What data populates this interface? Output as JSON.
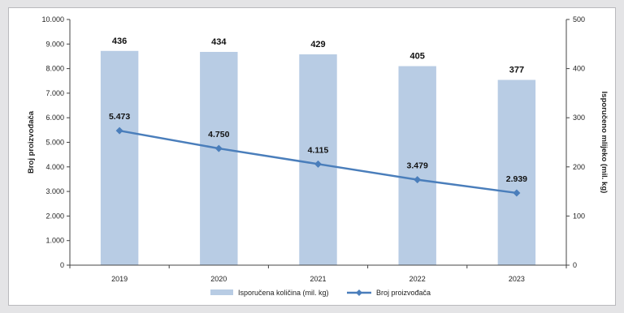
{
  "chart_data": {
    "type": "bar+line",
    "categories": [
      "2019",
      "2020",
      "2021",
      "2022",
      "2023"
    ],
    "series": [
      {
        "name": "Isporučena količina (mil. kg)",
        "chart_type": "bar",
        "axis": "right",
        "values": [
          436,
          434,
          429,
          405,
          377
        ],
        "labels": [
          "436",
          "434",
          "429",
          "405",
          "377"
        ],
        "color": "#b8cce4"
      },
      {
        "name": "Broj proizvođača",
        "chart_type": "line",
        "axis": "left",
        "values": [
          5473,
          4750,
          4115,
          3479,
          2939
        ],
        "labels": [
          "5.473",
          "4.750",
          "4.115",
          "3.479",
          "2.939"
        ],
        "color": "#4a7ebb"
      }
    ],
    "ylabel_left": "Broj proizvođača",
    "ylabel_right": "Isporučeno mlijeko (mil. kg)",
    "ylim_left": [
      0,
      10000
    ],
    "ylim_right": [
      0,
      500
    ],
    "yticks_left": [
      "0",
      "1.000",
      "2.000",
      "3.000",
      "4.000",
      "5.000",
      "6.000",
      "7.000",
      "8.000",
      "9.000",
      "10.000"
    ],
    "yticks_right": [
      "0",
      "100",
      "200",
      "300",
      "400",
      "500"
    ],
    "grid": false,
    "legend_position": "bottom-center"
  }
}
